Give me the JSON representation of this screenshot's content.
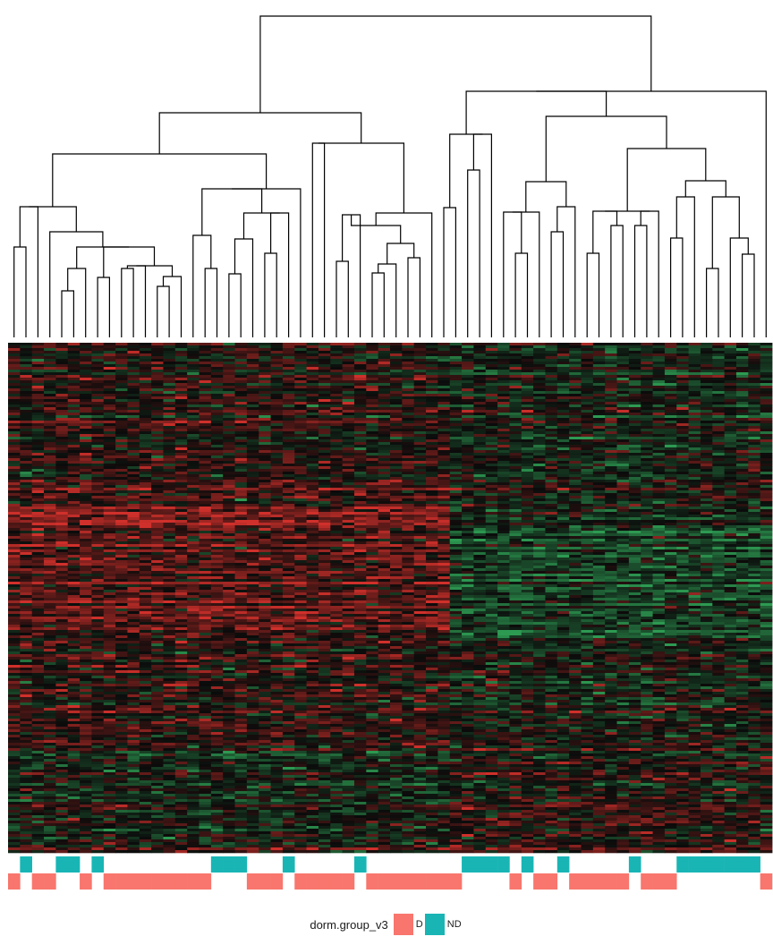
{
  "colors": {
    "group_D": "#f8766d",
    "group_ND": "#19b5b5",
    "heat_low": "#2d9a52",
    "heat_mid": "#0b0b0b",
    "heat_high": "#d0302b"
  },
  "chart_data": {
    "type": "heatmap",
    "title": "",
    "n_samples": 64,
    "clustered": true,
    "dendrogram": "top",
    "annotation_rows": 2,
    "legend": {
      "title": "dorm.group_v3",
      "placement": "bottom-center",
      "entries": [
        {
          "label": "D",
          "color": "#f8766d"
        },
        {
          "label": "ND",
          "color": "#19b5b5"
        }
      ]
    },
    "sample_groups": [
      "D",
      "ND",
      "D",
      "D",
      "ND",
      "ND",
      "D",
      "ND",
      "D",
      "D",
      "D",
      "D",
      "D",
      "D",
      "D",
      "D",
      "D",
      "ND",
      "ND",
      "ND",
      "D",
      "D",
      "D",
      "ND",
      "D",
      "D",
      "D",
      "D",
      "D",
      "ND",
      "D",
      "D",
      "D",
      "D",
      "D",
      "D",
      "D",
      "D",
      "ND",
      "ND",
      "ND",
      "ND",
      "D",
      "ND",
      "D",
      "D",
      "ND",
      "D",
      "D",
      "D",
      "D",
      "D",
      "ND",
      "D",
      "D",
      "D",
      "ND",
      "ND",
      "ND",
      "ND",
      "ND",
      "ND",
      "ND",
      "D"
    ]
  }
}
